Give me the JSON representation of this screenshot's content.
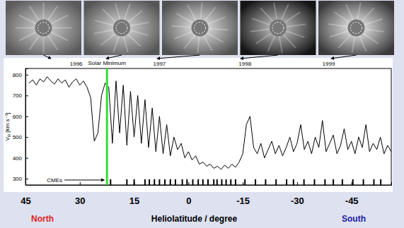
{
  "chart_data": {
    "type": "line",
    "ylabel": "VR [km s⁻¹]",
    "xlabel": "Heliolatitude / degree",
    "direction_labels": [
      {
        "text": "North",
        "color": "#e02020"
      },
      {
        "text": "South",
        "color": "#1a1aa0"
      }
    ],
    "x": [
      44,
      43,
      42,
      41,
      40,
      39,
      38,
      37,
      36,
      35,
      34,
      33,
      32,
      31,
      30,
      29,
      28,
      27,
      26,
      25,
      24,
      23,
      22,
      21,
      20,
      19,
      18,
      17,
      16,
      15,
      14,
      13,
      12,
      11,
      10,
      9,
      8,
      7,
      6,
      5,
      4,
      3,
      2,
      1,
      0,
      -1,
      -2,
      -3,
      -4,
      -5,
      -6,
      -7,
      -8,
      -9,
      -10,
      -11,
      -12,
      -13,
      -14,
      -15,
      -16,
      -17,
      -18,
      -19,
      -20,
      -21,
      -22,
      -23,
      -24,
      -25,
      -26,
      -27,
      -28,
      -29,
      -30,
      -31,
      -32,
      -33,
      -34,
      -35,
      -36,
      -37,
      -38,
      -39,
      -40,
      -41,
      -42,
      -43,
      -44,
      -45,
      -46,
      -47,
      -48,
      -49,
      -50,
      -51,
      -52,
      -53,
      -54,
      -55,
      -56
    ],
    "values": [
      760,
      775,
      750,
      780,
      765,
      790,
      770,
      755,
      780,
      760,
      775,
      740,
      765,
      780,
      750,
      770,
      740,
      690,
      480,
      520,
      700,
      760,
      740,
      470,
      770,
      520,
      750,
      460,
      720,
      500,
      700,
      470,
      680,
      450,
      640,
      430,
      600,
      420,
      560,
      410,
      500,
      440,
      470,
      400,
      430,
      390,
      410,
      370,
      380,
      360,
      370,
      350,
      360,
      345,
      365,
      350,
      370,
      355,
      380,
      420,
      560,
      600,
      450,
      420,
      470,
      400,
      440,
      480,
      420,
      460,
      410,
      450,
      500,
      430,
      470,
      560,
      440,
      480,
      420,
      500,
      450,
      580,
      430,
      470,
      510,
      420,
      460,
      540,
      440,
      480,
      420,
      500,
      450,
      560,
      430,
      470,
      440,
      500,
      420,
      460,
      430
    ],
    "color": "#000000",
    "xlim": [
      45,
      -56
    ],
    "xticks": [
      45,
      30,
      15,
      0,
      -15,
      -30,
      -45
    ],
    "ylim": [
      270,
      830
    ],
    "yticks": [
      300,
      400,
      500,
      600,
      700,
      800
    ],
    "grid": false,
    "time_labels": [
      {
        "text": "1996",
        "x": 31
      },
      {
        "text": "1997",
        "x": 8
      },
      {
        "text": "1998",
        "x": -15.6
      },
      {
        "text": "1999",
        "x": -38.7
      }
    ],
    "annotations": [
      {
        "text": "Solar Minimum",
        "x": 22.5,
        "color": "#33dd33"
      }
    ],
    "cmes": {
      "label": "CMEs",
      "x": [
        21.5,
        17,
        15,
        12,
        10.8,
        9.4,
        8,
        6.5,
        5,
        3.6,
        1.7,
        0.4,
        -1.2,
        -2.7,
        -4,
        -5.4,
        -7,
        -7.9,
        -9.2,
        -10.4,
        -11.7,
        -13,
        -15.6,
        -18.5,
        -21.3,
        -24.2,
        -27.1,
        -29,
        -31.9,
        -34.8,
        -37.7,
        -40,
        -42.5,
        -45.4,
        -48.3,
        -51.2,
        -53.1
      ]
    }
  }
}
